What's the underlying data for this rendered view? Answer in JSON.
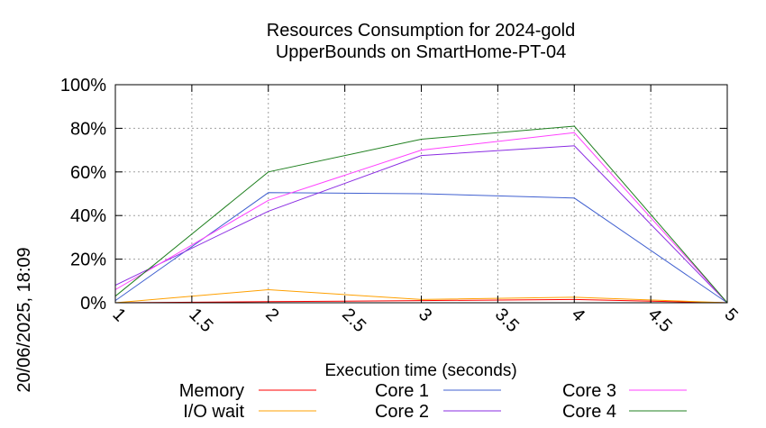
{
  "timestamp": "20/06/2025, 18:09",
  "chart_data": {
    "type": "line",
    "title": [
      "Resources Consumption for 2024-gold",
      "UpperBounds on SmartHome-PT-04"
    ],
    "xlabel": "Execution time (seconds)",
    "ylabel": "",
    "xlim": [
      1,
      5
    ],
    "ylim": [
      0,
      100
    ],
    "grid": true,
    "legend_position": "bottom",
    "x_ticks": [
      "1",
      "1.5",
      "2",
      "2.5",
      "3",
      "3.5",
      "4",
      "4.5",
      "5"
    ],
    "x_tick_values": [
      1,
      1.5,
      2,
      2.5,
      3,
      3.5,
      4,
      4.5,
      5
    ],
    "y_ticks": [
      "0%",
      "20%",
      "40%",
      "60%",
      "80%",
      "100%"
    ],
    "y_tick_values": [
      0,
      20,
      40,
      60,
      80,
      100
    ],
    "x": [
      1,
      2,
      3,
      4,
      5
    ],
    "series": [
      {
        "name": "Memory",
        "color": "#ff0000",
        "values": [
          0,
          0.5,
          1,
          1.5,
          0
        ]
      },
      {
        "name": "I/O wait",
        "color": "#ffa000",
        "values": [
          0,
          6,
          1.5,
          2.5,
          0
        ]
      },
      {
        "name": "Core 1",
        "color": "#4060d0",
        "values": [
          1,
          50.5,
          50,
          48,
          0
        ]
      },
      {
        "name": "Core 2",
        "color": "#8a2be2",
        "values": [
          8,
          42,
          67.5,
          72,
          0
        ]
      },
      {
        "name": "Core 3",
        "color": "#ff40ff",
        "values": [
          6,
          47,
          70,
          78,
          0
        ]
      },
      {
        "name": "Core 4",
        "color": "#208020",
        "values": [
          3,
          60,
          75,
          81,
          0
        ]
      }
    ]
  }
}
